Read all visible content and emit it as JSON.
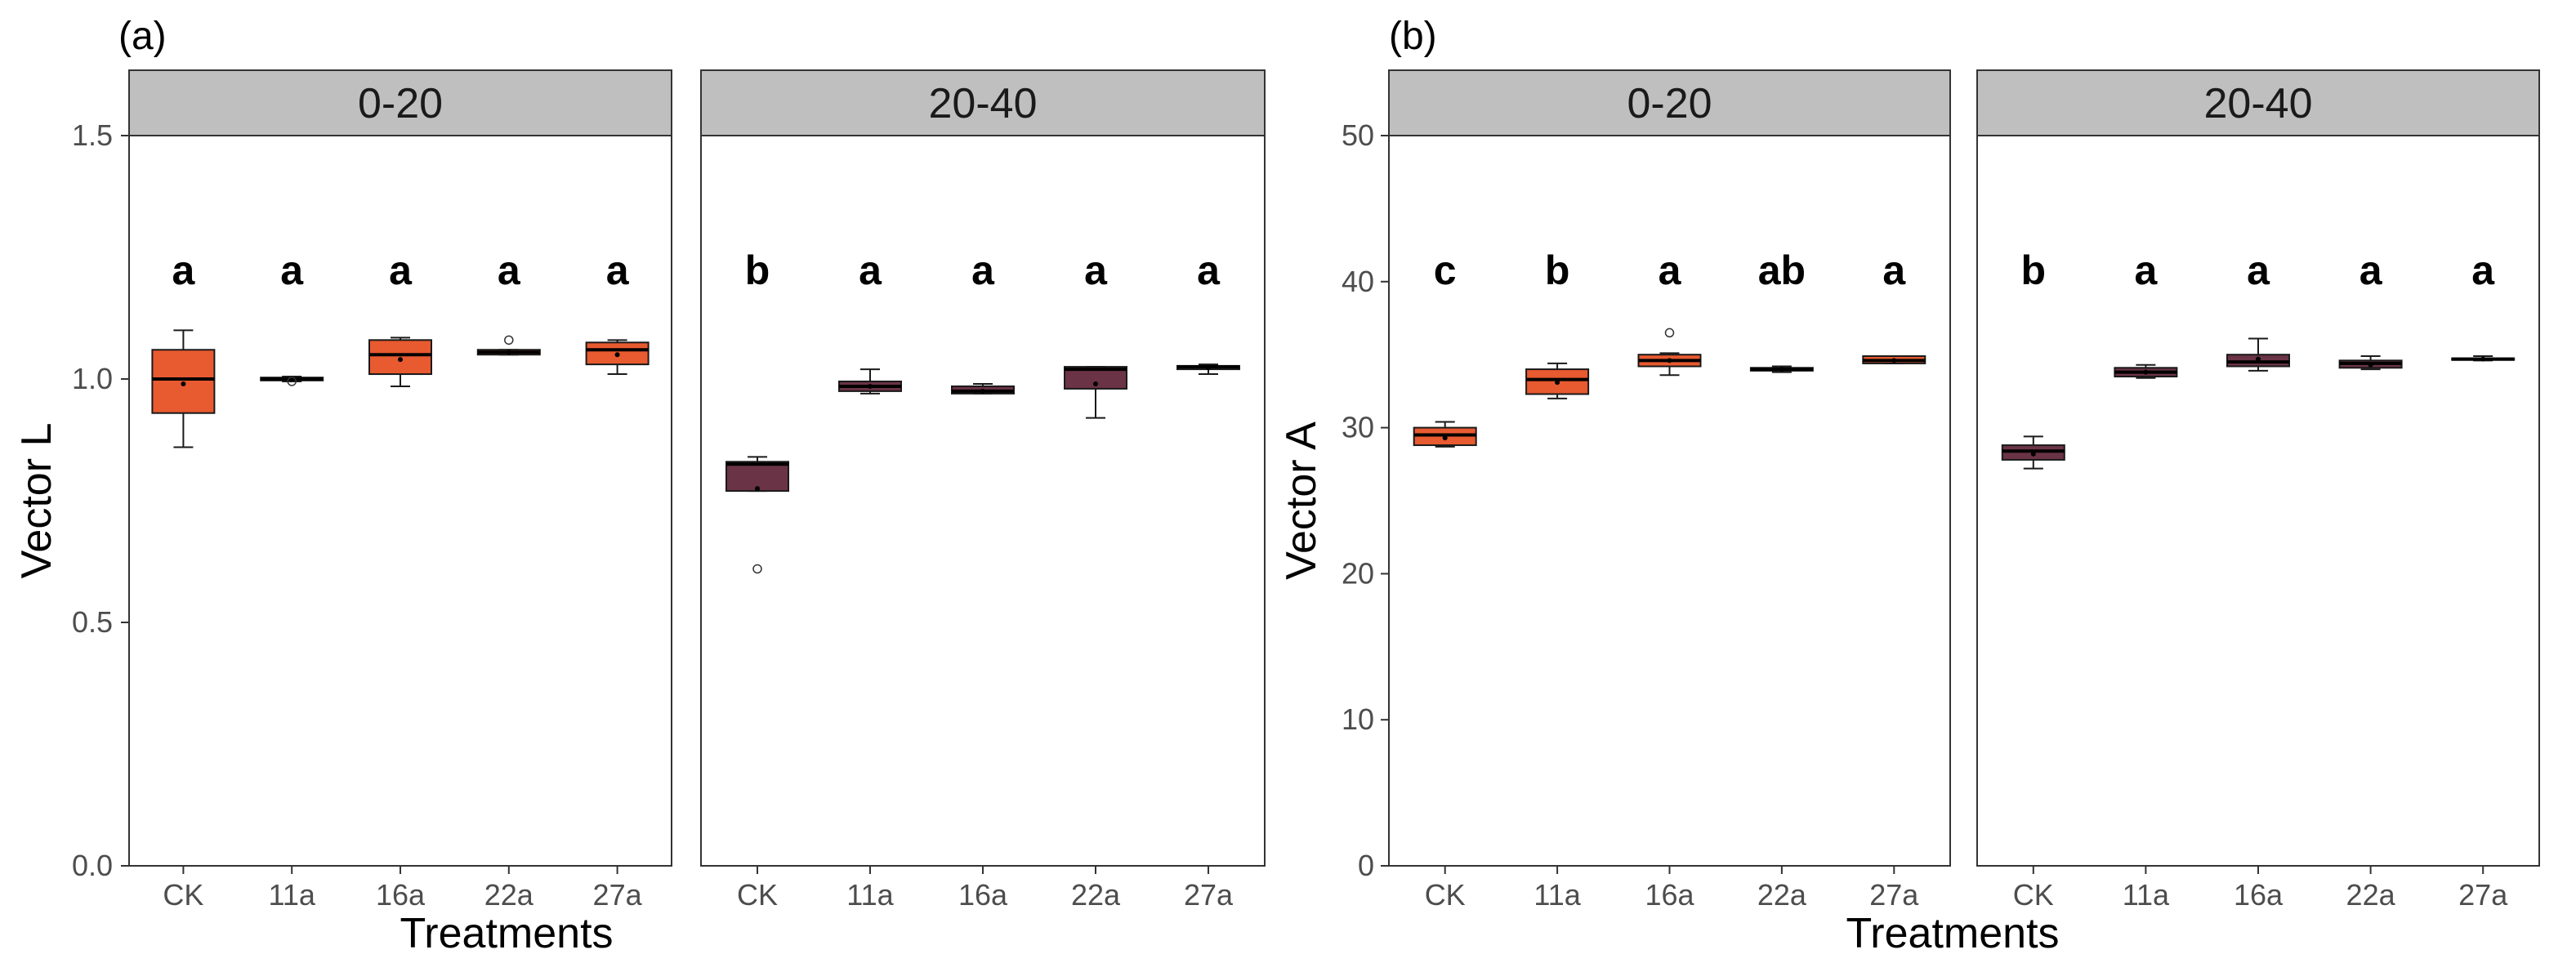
{
  "chart_data": [
    {
      "type": "boxplot",
      "panel_label": "(a)",
      "xlabel": "Treatments",
      "ylabel": "Vector L",
      "ylim": [
        0,
        1.5
      ],
      "yticks": [
        "0.0",
        "0.5",
        "1.0",
        "1.5"
      ],
      "yticks_values": [
        0,
        0.5,
        1.0,
        1.5
      ],
      "categories": [
        "CK",
        "11a",
        "16a",
        "22a",
        "27a"
      ],
      "facets": [
        {
          "label": "0-20",
          "color": "#e85a30",
          "boxes": [
            {
              "category": "CK",
              "min": 0.86,
              "q1": 0.93,
              "median": 1.0,
              "q3": 1.06,
              "max": 1.1,
              "mean": 0.99,
              "outliers": [],
              "letter": "a"
            },
            {
              "category": "11a",
              "min": 0.995,
              "q1": 0.997,
              "median": 1.0,
              "q3": 1.003,
              "max": 1.005,
              "mean": 1.0,
              "outliers": [
                0.995
              ],
              "letter": "a"
            },
            {
              "category": "16a",
              "min": 0.985,
              "q1": 1.01,
              "median": 1.05,
              "q3": 1.08,
              "max": 1.085,
              "mean": 1.04,
              "outliers": [],
              "letter": "a"
            },
            {
              "category": "22a",
              "min": 1.05,
              "q1": 1.05,
              "median": 1.055,
              "q3": 1.06,
              "max": 1.06,
              "mean": 1.055,
              "outliers": [
                1.08
              ],
              "letter": "a"
            },
            {
              "category": "27a",
              "min": 1.01,
              "q1": 1.03,
              "median": 1.06,
              "q3": 1.075,
              "max": 1.08,
              "mean": 1.05,
              "outliers": [],
              "letter": "a"
            }
          ]
        },
        {
          "label": "20-40",
          "color": "#6b3346",
          "boxes": [
            {
              "category": "CK",
              "min": 0.77,
              "q1": 0.77,
              "median": 0.825,
              "q3": 0.83,
              "max": 0.84,
              "mean": 0.775,
              "outliers": [
                0.61
              ],
              "letter": "b"
            },
            {
              "category": "11a",
              "min": 0.97,
              "q1": 0.975,
              "median": 0.985,
              "q3": 0.995,
              "max": 1.02,
              "mean": 0.985,
              "outliers": [],
              "letter": "a"
            },
            {
              "category": "16a",
              "min": 0.97,
              "q1": 0.97,
              "median": 0.975,
              "q3": 0.985,
              "max": 0.99,
              "mean": 0.975,
              "outliers": [],
              "letter": "a"
            },
            {
              "category": "22a",
              "min": 0.92,
              "q1": 0.98,
              "median": 1.02,
              "q3": 1.025,
              "max": 1.025,
              "mean": 0.99,
              "outliers": [],
              "letter": "a"
            },
            {
              "category": "27a",
              "min": 1.01,
              "q1": 1.02,
              "median": 1.025,
              "q3": 1.027,
              "max": 1.03,
              "mean": 1.023,
              "outliers": [],
              "letter": "a"
            }
          ]
        }
      ]
    },
    {
      "type": "boxplot",
      "panel_label": "(b)",
      "xlabel": "Treatments",
      "ylabel": "Vector A",
      "ylim": [
        0,
        50
      ],
      "yticks": [
        "0",
        "10",
        "20",
        "30",
        "40",
        "50"
      ],
      "yticks_values": [
        0,
        10,
        20,
        30,
        40,
        50
      ],
      "categories": [
        "CK",
        "11a",
        "16a",
        "22a",
        "27a"
      ],
      "facets": [
        {
          "label": "0-20",
          "color": "#e85a30",
          "boxes": [
            {
              "category": "CK",
              "min": 28.7,
              "q1": 28.8,
              "median": 29.5,
              "q3": 30.0,
              "max": 30.4,
              "mean": 29.3,
              "outliers": [],
              "letter": "c"
            },
            {
              "category": "11a",
              "min": 32.0,
              "q1": 32.3,
              "median": 33.3,
              "q3": 34.0,
              "max": 34.4,
              "mean": 33.1,
              "outliers": [],
              "letter": "b"
            },
            {
              "category": "16a",
              "min": 33.6,
              "q1": 34.2,
              "median": 34.6,
              "q3": 35.0,
              "max": 35.1,
              "mean": 34.6,
              "outliers": [
                36.5
              ],
              "letter": "a"
            },
            {
              "category": "22a",
              "min": 33.8,
              "q1": 33.9,
              "median": 34.0,
              "q3": 34.1,
              "max": 34.2,
              "mean": 34.0,
              "outliers": [],
              "letter": "ab"
            },
            {
              "category": "27a",
              "min": 34.4,
              "q1": 34.4,
              "median": 34.6,
              "q3": 34.9,
              "max": 34.9,
              "mean": 34.6,
              "outliers": [],
              "letter": "a"
            }
          ]
        },
        {
          "label": "20-40",
          "color": "#6b3346",
          "boxes": [
            {
              "category": "CK",
              "min": 27.2,
              "q1": 27.8,
              "median": 28.4,
              "q3": 28.8,
              "max": 29.4,
              "mean": 28.2,
              "outliers": [],
              "letter": "b"
            },
            {
              "category": "11a",
              "min": 33.4,
              "q1": 33.5,
              "median": 33.8,
              "q3": 34.1,
              "max": 34.3,
              "mean": 33.8,
              "outliers": [],
              "letter": "a"
            },
            {
              "category": "16a",
              "min": 33.9,
              "q1": 34.2,
              "median": 34.5,
              "q3": 35.0,
              "max": 36.1,
              "mean": 34.7,
              "outliers": [],
              "letter": "a"
            },
            {
              "category": "22a",
              "min": 34.0,
              "q1": 34.1,
              "median": 34.4,
              "q3": 34.6,
              "max": 34.9,
              "mean": 34.3,
              "outliers": [],
              "letter": "a"
            },
            {
              "category": "27a",
              "min": 34.6,
              "q1": 34.65,
              "median": 34.7,
              "q3": 34.75,
              "max": 34.9,
              "mean": 34.7,
              "outliers": [],
              "letter": "a"
            }
          ]
        }
      ]
    }
  ]
}
